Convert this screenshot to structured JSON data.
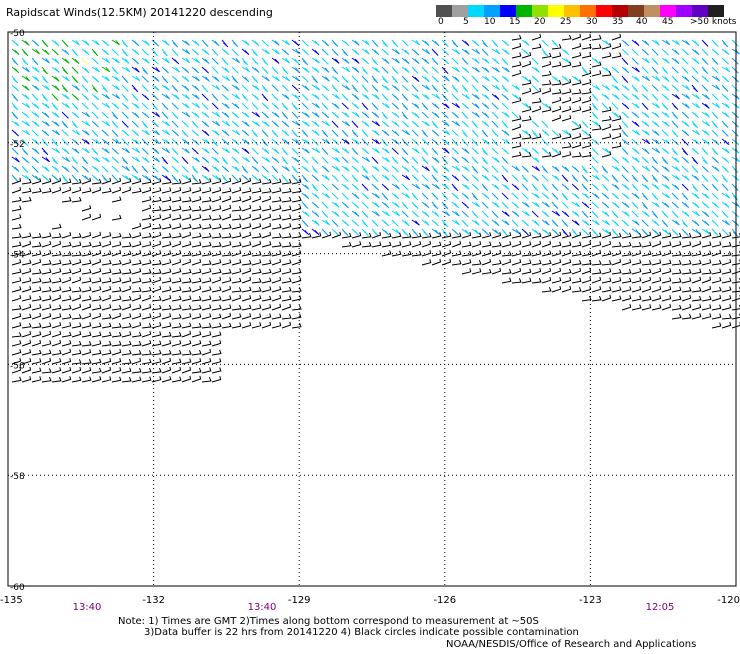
{
  "title": "Rapidscat Winds(12.5KM) 20141220 descending",
  "legend": {
    "unit": "knots",
    "colors": [
      "#505050",
      "#a0a0a0",
      "#00d8ff",
      "#00a0ff",
      "#0000ff",
      "#00b400",
      "#90e000",
      "#ffff00",
      "#ffc000",
      "#ff7000",
      "#ff0000",
      "#b40000",
      "#804020",
      "#c09060",
      "#ff00ff",
      "#a000ff",
      "#6000c0",
      "#202020"
    ],
    "labels": [
      "0",
      "5",
      "10",
      "15",
      "20",
      "25",
      "30",
      "35",
      "40",
      "45",
      ">50 knots"
    ]
  },
  "map": {
    "lat_ticks": [
      "-50",
      "-52",
      "-54",
      "-56",
      "-58",
      "-60"
    ],
    "lon_ticks": [
      "-135",
      "-132",
      "-129",
      "-126",
      "-123",
      "-120"
    ],
    "time_labels": [
      "13:40",
      "13:40",
      "12:05"
    ]
  },
  "notes": {
    "line1": "Note: 1) Times are GMT 2)Times along bottom correspond to measurement at ~50S",
    "line2": "3)Data buffer is 22 hrs from 20141220 4) Black circles indicate possible contamination"
  },
  "credit": "NOAA/NESDIS/Office of Research and Applications"
}
